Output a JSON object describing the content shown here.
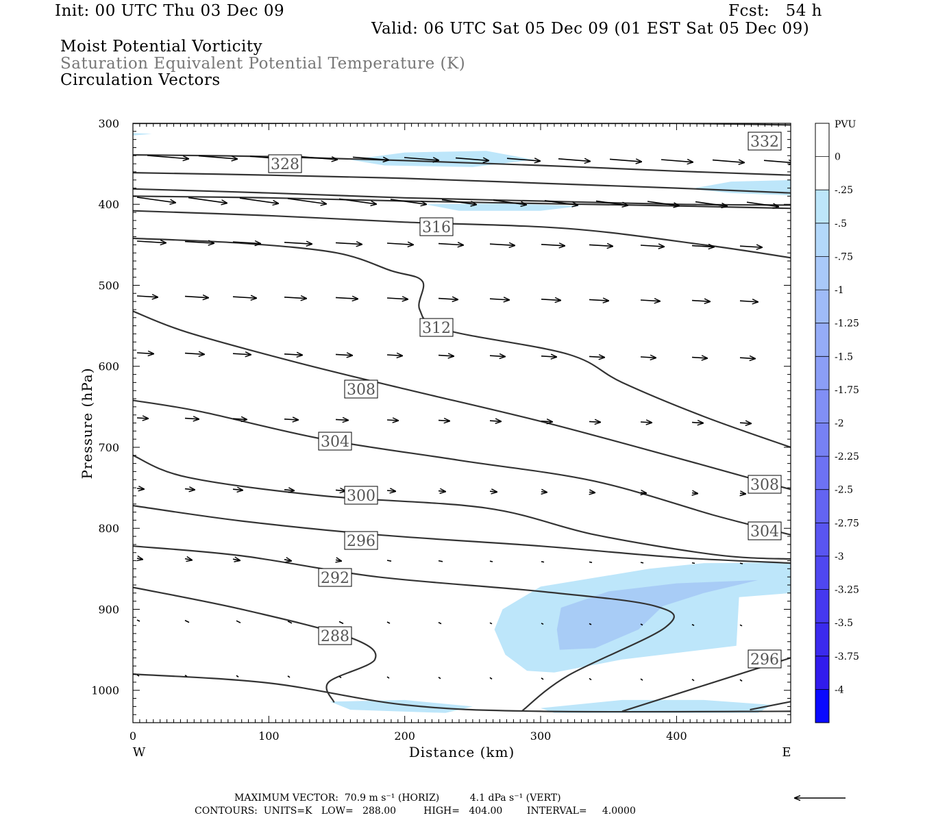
{
  "header": {
    "init": "Init: 00 UTC Thu 03 Dec 09",
    "fcst": "Fcst:   54 h",
    "valid": "Valid: 06 UTC Sat 05 Dec 09 (01 EST Sat 05 Dec 09)",
    "field1": "Moist Potential Vorticity",
    "field2": "Saturation Equivalent Potential Temperature (K)",
    "field3": "Circulation Vectors"
  },
  "footer": {
    "maxvec": "MAXIMUM VECTOR:  70.9 m s⁻¹ (HORIZ)          4.1 dPa s⁻¹ (VERT)",
    "contours": "CONTOURS:  UNITS=K   LOW=   288.00         HIGH=   404.00        INTERVAL=     4.0000"
  },
  "chart_data": {
    "type": "cross-section contour",
    "xlabel": "Distance (km)",
    "ylabel": "Pressure (hPa)",
    "xlim": [
      0,
      484
    ],
    "ylim": [
      1040,
      300
    ],
    "x_ticks": [
      0,
      100,
      200,
      300,
      400
    ],
    "y_ticks": [
      300,
      400,
      500,
      600,
      700,
      800,
      900,
      1000
    ],
    "x_end_labels": {
      "left": "W",
      "right": "E"
    },
    "colorbar": {
      "title": "PVU",
      "levels": [
        "0",
        "-.25",
        "-.5",
        "-.75",
        "-1",
        "-1.25",
        "-1.5",
        "-1.75",
        "-2",
        "-2.25",
        "-2.5",
        "-2.75",
        "-3",
        "-3.25",
        "-3.5",
        "-3.75",
        "-4"
      ],
      "colors": [
        "#ffffff",
        "#ffffff",
        "#bde6fa",
        "#b3d8fa",
        "#a9c9f9",
        "#9fbbf8",
        "#95acf7",
        "#8b9ef6",
        "#818ff5",
        "#7781f4",
        "#6d72f3",
        "#6364f2",
        "#5955f1",
        "#4f47f0",
        "#4538ef",
        "#3b2aee",
        "#311bed",
        "#0a0aff"
      ]
    },
    "pv_fill_colors": {
      "light": "#bde6fa",
      "medium": "#a8ccf6"
    },
    "theta_es_contours": [
      {
        "label": "332",
        "points": [
          [
            0,
            300
          ],
          [
            100,
            300
          ],
          [
            190,
            299
          ],
          [
            300,
            300
          ],
          [
            400,
            300
          ],
          [
            484,
            302
          ]
        ]
      },
      {
        "label": "328",
        "points": [
          [
            0,
            339
          ],
          [
            100,
            341
          ],
          [
            200,
            346
          ],
          [
            300,
            352
          ],
          [
            400,
            359
          ],
          [
            484,
            364
          ]
        ]
      },
      {
        "label": "",
        "points": [
          [
            0,
            361
          ],
          [
            100,
            364
          ],
          [
            200,
            368
          ],
          [
            300,
            374
          ],
          [
            400,
            380
          ],
          [
            484,
            386
          ]
        ]
      },
      {
        "label": "",
        "points": [
          [
            0,
            381
          ],
          [
            100,
            386
          ],
          [
            200,
            392
          ],
          [
            300,
            396
          ],
          [
            400,
            400
          ],
          [
            484,
            401
          ]
        ]
      },
      {
        "label": "",
        "points": [
          [
            0,
            390
          ],
          [
            100,
            392
          ],
          [
            200,
            396
          ],
          [
            300,
            399
          ],
          [
            400,
            402
          ],
          [
            484,
            405
          ]
        ]
      },
      {
        "label": "316",
        "points": [
          [
            0,
            408
          ],
          [
            100,
            414
          ],
          [
            200,
            422
          ],
          [
            320,
            430
          ],
          [
            420,
            450
          ],
          [
            484,
            466
          ]
        ]
      },
      {
        "label": "312",
        "points": [
          [
            0,
            442
          ],
          [
            80,
            448
          ],
          [
            150,
            460
          ],
          [
            190,
            482
          ],
          [
            213,
            495
          ],
          [
            211,
            530
          ],
          [
            230,
            555
          ],
          [
            320,
            585
          ],
          [
            360,
            620
          ],
          [
            420,
            662
          ],
          [
            484,
            700
          ]
        ]
      },
      {
        "label": "308",
        "points": [
          [
            0,
            532
          ],
          [
            40,
            558
          ],
          [
            120,
            595
          ],
          [
            200,
            628
          ],
          [
            300,
            668
          ],
          [
            400,
            713
          ],
          [
            484,
            752
          ]
        ]
      },
      {
        "label": "304",
        "points": [
          [
            0,
            642
          ],
          [
            50,
            656
          ],
          [
            140,
            690
          ],
          [
            240,
            716
          ],
          [
            340,
            742
          ],
          [
            430,
            785
          ],
          [
            484,
            808
          ]
        ]
      },
      {
        "label": "300",
        "points": [
          [
            0,
            710
          ],
          [
            40,
            737
          ],
          [
            140,
            760
          ],
          [
            260,
            775
          ],
          [
            340,
            808
          ],
          [
            430,
            833
          ],
          [
            484,
            838
          ]
        ]
      },
      {
        "label": "296",
        "points": [
          [
            0,
            772
          ],
          [
            80,
            791
          ],
          [
            180,
            808
          ],
          [
            300,
            822
          ],
          [
            400,
            836
          ],
          [
            484,
            843
          ]
        ]
      },
      {
        "label": "292",
        "points": [
          [
            0,
            822
          ],
          [
            80,
            834
          ],
          [
            180,
            860
          ],
          [
            300,
            878
          ],
          [
            384,
            896
          ],
          [
            392,
            922
          ],
          [
            320,
            982
          ],
          [
            286,
            1026
          ]
        ]
      },
      {
        "label": "288",
        "points": [
          [
            0,
            873
          ],
          [
            80,
            900
          ],
          [
            160,
            935
          ],
          [
            178,
            962
          ],
          [
            144,
            990
          ],
          [
            148,
            1015
          ]
        ]
      },
      {
        "label": "",
        "points": [
          [
            0,
            980
          ],
          [
            100,
            991
          ],
          [
            200,
            1018
          ],
          [
            300,
            1026
          ],
          [
            484,
            1026
          ]
        ]
      },
      {
        "label": "296",
        "points": [
          [
            360,
            1026
          ],
          [
            484,
            960
          ]
        ]
      },
      {
        "label": "",
        "points": [
          [
            454,
            1024
          ],
          [
            484,
            1014
          ]
        ]
      }
    ],
    "circulation_vectors": {
      "max_horiz": "70.9 m s⁻¹",
      "max_vert": "4.1 dPa s⁻¹"
    },
    "contour_units": "K",
    "contour_low": 288.0,
    "contour_high": 404.0,
    "contour_interval": 4.0
  }
}
